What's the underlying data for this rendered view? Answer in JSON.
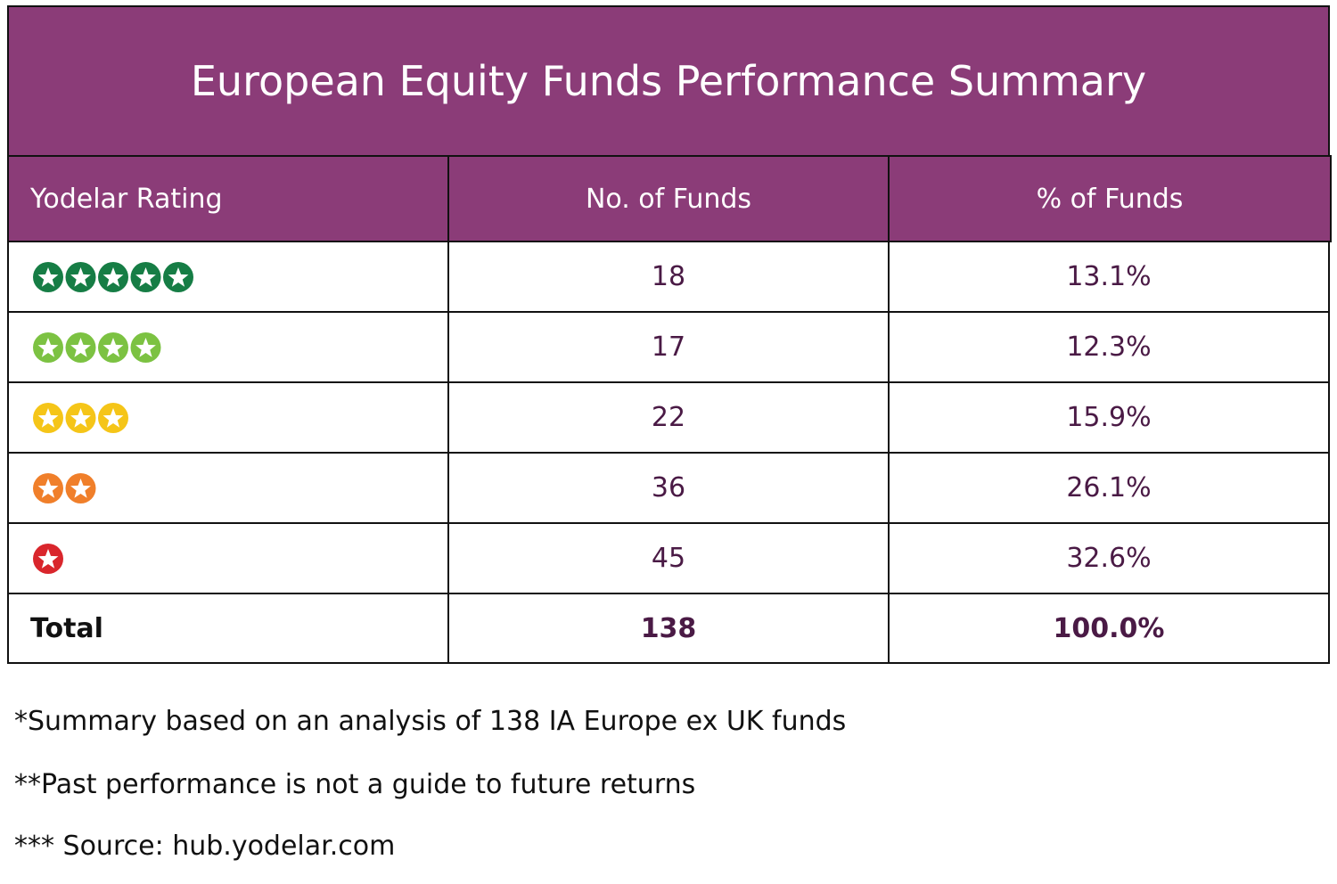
{
  "header": {
    "title": "European Equity Funds Performance Summary",
    "color": "#8b3c78"
  },
  "table": {
    "columns": [
      "Yodelar Rating",
      "No. of Funds",
      "% of Funds"
    ],
    "rows": [
      {
        "rating": 5,
        "color": "#167d45",
        "funds": "18",
        "percent": "13.1%"
      },
      {
        "rating": 4,
        "color": "#7cc242",
        "funds": "17",
        "percent": "12.3%"
      },
      {
        "rating": 3,
        "color": "#f5c518",
        "funds": "22",
        "percent": "15.9%"
      },
      {
        "rating": 2,
        "color": "#f07f2a",
        "funds": "36",
        "percent": "26.1%"
      },
      {
        "rating": 1,
        "color": "#d9262c",
        "funds": "45",
        "percent": "32.6%"
      }
    ],
    "total": {
      "label": "Total",
      "funds": "138",
      "percent": "100.0%"
    }
  },
  "notes": [
    "*Summary based on an analysis of 138 IA Europe ex UK funds",
    "**Past performance is not a guide to future returns",
    "*** Source: hub.yodelar.com"
  ]
}
